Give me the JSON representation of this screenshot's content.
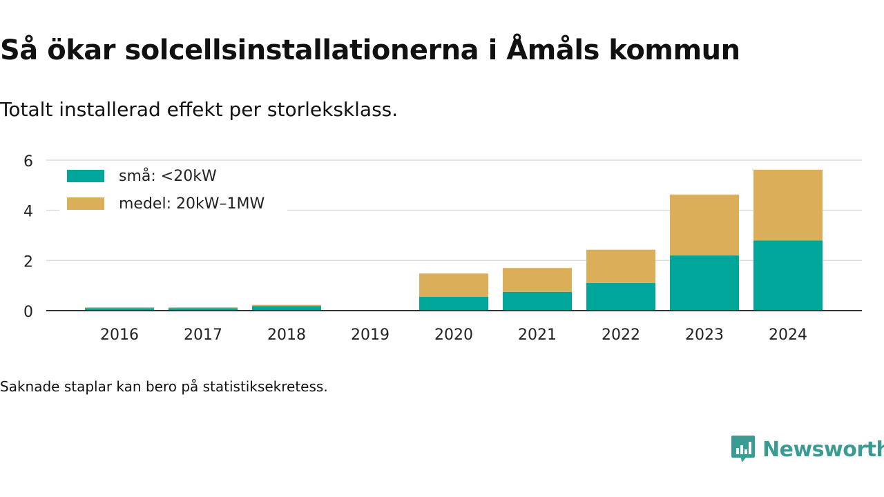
{
  "title": "Så ökar solcellsinstallationerna i Åmåls kommun",
  "subtitle": "Totalt installerad effekt per storleksklass.",
  "footnote": "Saknade staplar kan bero på statistiksekretess.",
  "brand": {
    "name": "Newsworthy",
    "icon": "newsworthy-logo-icon",
    "color": "#3a9b93"
  },
  "chart_data": {
    "type": "bar",
    "stacked": true,
    "categories": [
      "2016",
      "2017",
      "2018",
      "2019",
      "2020",
      "2021",
      "2022",
      "2023",
      "2024"
    ],
    "series": [
      {
        "name": "små: <20kW",
        "color": "#00a699",
        "values": [
          0.1,
          0.1,
          0.18,
          0,
          0.55,
          0.75,
          1.1,
          2.2,
          2.8
        ]
      },
      {
        "name": "medel: 20kW–1MW",
        "color": "#dbae5a",
        "values": [
          0.03,
          0.03,
          0.05,
          0,
          0.93,
          0.95,
          1.33,
          2.43,
          2.82
        ]
      }
    ],
    "yticks": [
      0,
      2,
      4,
      6
    ],
    "ylim": [
      0,
      6
    ],
    "grid": true,
    "legend_position": "top-left",
    "xlabel": "",
    "ylabel": ""
  }
}
